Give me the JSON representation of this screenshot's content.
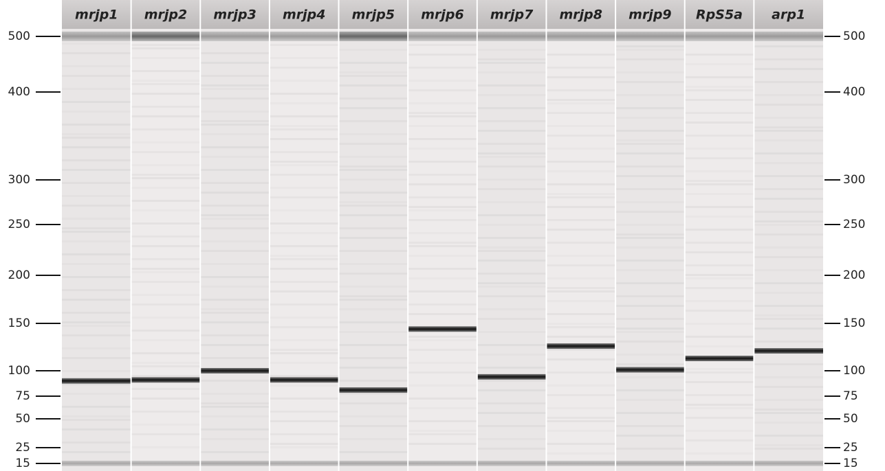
{
  "chart_data": {
    "type": "gel",
    "categories": [
      "mrjp1",
      "mrjp2",
      "mrjp3",
      "mrjp4",
      "mrjp5",
      "mrjp6",
      "mrjp7",
      "mrjp8",
      "mrjp9",
      "RpS5a",
      "arp1"
    ],
    "values": [
      90,
      91,
      100,
      91,
      81,
      144,
      94,
      126,
      101,
      113,
      121
    ],
    "yticks": [
      500,
      400,
      300,
      250,
      200,
      150,
      100,
      75,
      50,
      25,
      15
    ]
  }
}
